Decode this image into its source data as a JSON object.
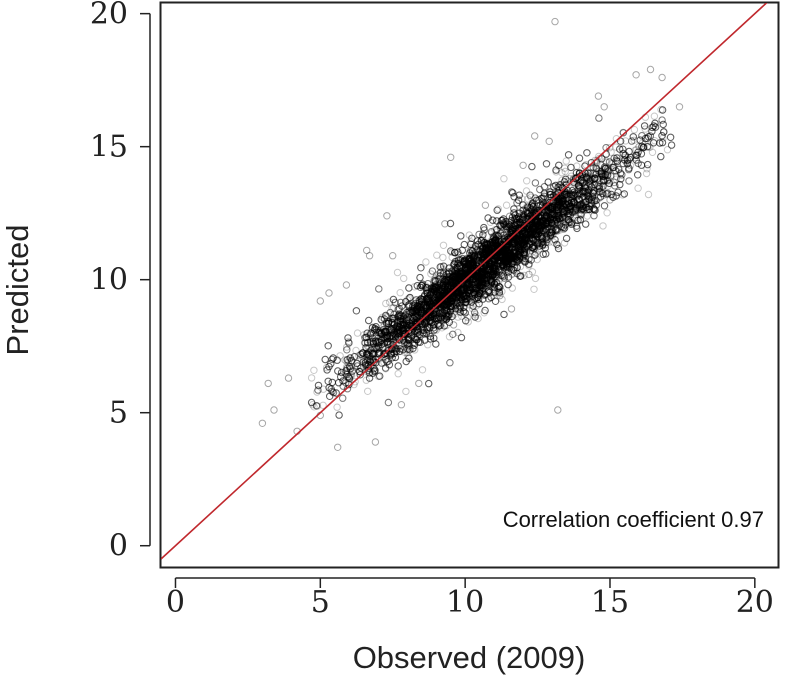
{
  "chart_data": {
    "type": "scatter",
    "xlabel": "Observed (2009)",
    "ylabel": "Predicted",
    "xlim": [
      -0.5,
      20.8
    ],
    "ylim": [
      -0.8,
      20.4
    ],
    "xticks": [
      0,
      5,
      10,
      15,
      20
    ],
    "yticks": [
      0,
      5,
      10,
      15,
      20
    ],
    "xtick_labels": [
      "0",
      "5",
      "10",
      "15",
      "20"
    ],
    "ytick_labels": [
      "0",
      "5",
      "10",
      "15",
      "20"
    ],
    "grid": false,
    "reference_line": {
      "from": [
        -0.5,
        -0.5
      ],
      "to": [
        20.8,
        20.8
      ],
      "color": "#c0282d"
    },
    "point_color": "#000000",
    "annotation": "Correlation coefficient 0.97",
    "annotation_placement": "bottom-right",
    "series": [
      {
        "values_note_points": [
          [
            13.1,
            19.7
          ],
          [
            16.8,
            17.6
          ],
          [
            17.4,
            16.5
          ],
          [
            16.4,
            17.9
          ],
          [
            15.9,
            17.7
          ],
          [
            9.5,
            14.6
          ],
          [
            9.3,
            12.1
          ],
          [
            7.3,
            12.4
          ],
          [
            6.6,
            11.1
          ],
          [
            6.7,
            10.9
          ],
          [
            5.3,
            9.5
          ],
          [
            5.9,
            9.8
          ],
          [
            5.0,
            9.2
          ],
          [
            3.9,
            6.3
          ],
          [
            3.2,
            6.1
          ],
          [
            3.0,
            4.6
          ],
          [
            3.4,
            5.1
          ],
          [
            4.2,
            4.3
          ],
          [
            5.0,
            4.9
          ],
          [
            5.6,
            3.7
          ],
          [
            13.2,
            5.1
          ],
          [
            12.2,
            10.2
          ],
          [
            12.8,
            11.4
          ],
          [
            9.6,
            8.3
          ],
          [
            8.9,
            8.7
          ],
          [
            11.6,
            8.9
          ],
          [
            11.2,
            9.4
          ],
          [
            12.0,
            14.3
          ],
          [
            14.8,
            16.5
          ],
          [
            14.6,
            16.9
          ],
          [
            12.4,
            15.4
          ],
          [
            12.9,
            15.2
          ],
          [
            10.7,
            12.8
          ],
          [
            7.8,
            5.3
          ],
          [
            8.4,
            6.1
          ],
          [
            15.0,
            13.0
          ],
          [
            14.0,
            12.5
          ],
          [
            16.0,
            15.0
          ],
          [
            6.9,
            3.9
          ],
          [
            7.5,
            10.9
          ]
        ]
      }
    ]
  }
}
